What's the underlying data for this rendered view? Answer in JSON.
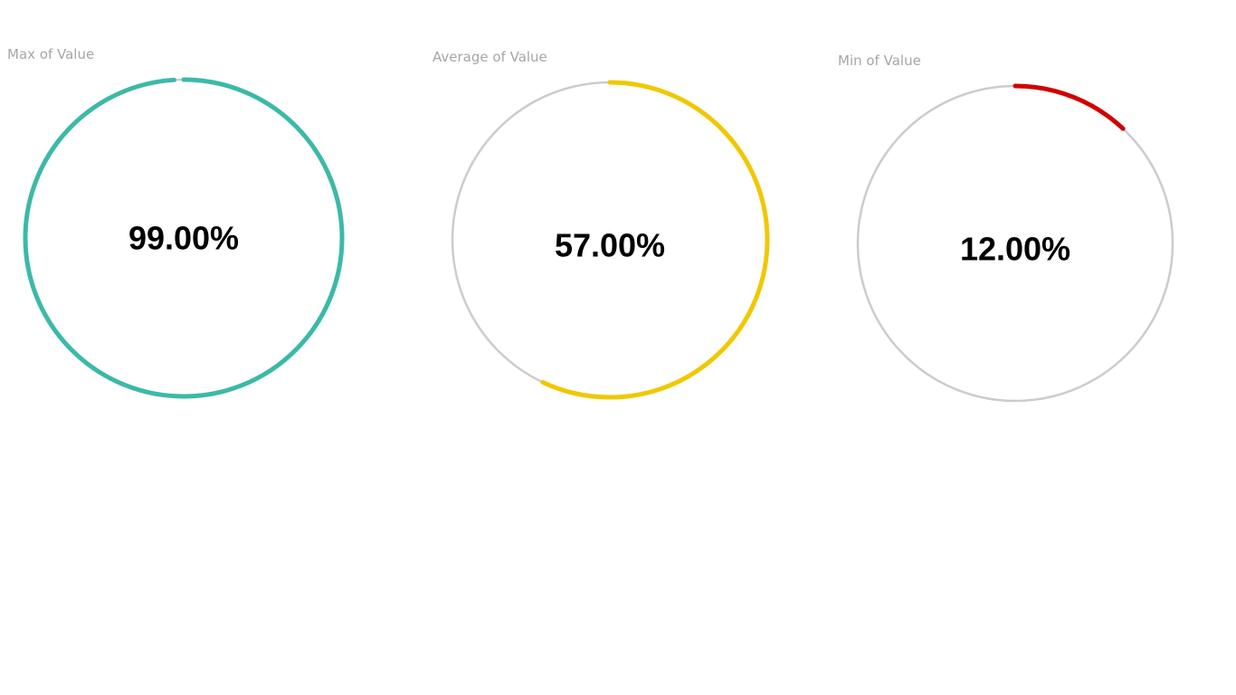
{
  "chart_data": [
    {
      "type": "gauge",
      "title": "Max of Value",
      "value": 99.0,
      "max": 100,
      "value_label": "99.00%",
      "color": "#3cb9a8",
      "track_color": "#cccccc"
    },
    {
      "type": "gauge",
      "title": "Average of Value",
      "value": 57.0,
      "max": 100,
      "value_label": "57.00%",
      "color": "#f0c800",
      "track_color": "#cccccc"
    },
    {
      "type": "gauge",
      "title": "Min of Value",
      "value": 12.0,
      "max": 100,
      "value_label": "12.00%",
      "color": "#d10000",
      "track_color": "#cccccc"
    }
  ]
}
